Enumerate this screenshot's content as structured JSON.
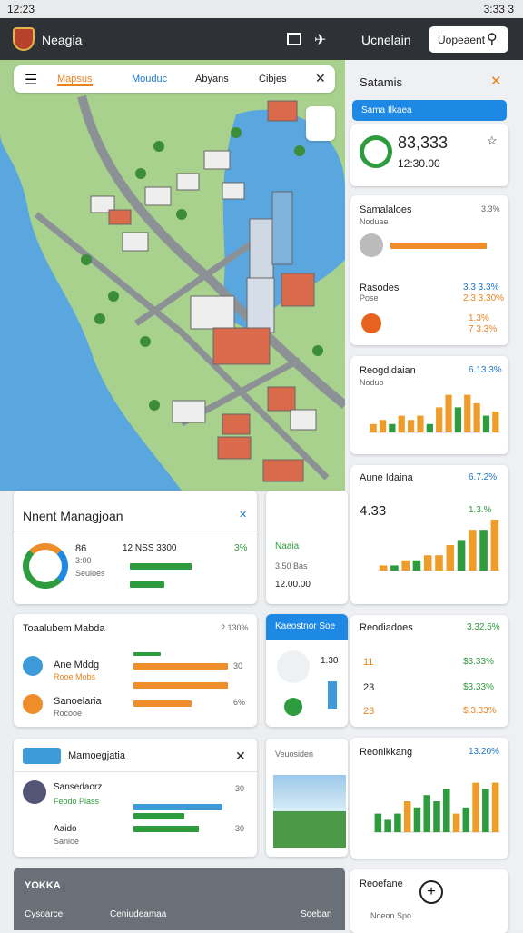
{
  "status_bar": {
    "time": "12:23",
    "right": "3:33 3"
  },
  "app_bar": {
    "title": "Neagia",
    "tabs": [
      "Mapsus",
      "Mouduc",
      "Abyans",
      "Cibjes"
    ]
  },
  "panel": {
    "header": "Ucnelain",
    "button": "Uopeaent",
    "title": "Satamis",
    "banner": "Sama Ilkaea",
    "summary": {
      "value": "83,333",
      "time": "12:30.00"
    },
    "sales": {
      "title": "Samalaloes",
      "rate": "3.3%",
      "sub": "Noduae",
      "rows": [
        {
          "label": "Rasodes",
          "sub": "Pose",
          "value": "3.3 3.3%",
          "value2": "2.3 3.30%"
        },
        {
          "value": "1.3%",
          "value2": "7 3.3%"
        }
      ]
    },
    "charts": [
      {
        "title": "Reogdidaian",
        "rate": "6.13.3%",
        "sub": "Noduo",
        "ylim": [
          0,
          10
        ],
        "values": [
          2,
          3,
          2,
          4,
          3,
          4,
          2,
          6,
          9,
          6,
          9,
          7,
          4,
          5
        ],
        "colors": [
          "#ef9d2a",
          "#ef9d2a",
          "#2e9b3f",
          "#ef9d2a",
          "#ef9d2a",
          "#ef9d2a",
          "#2e9b3f",
          "#ef9d2a",
          "#ef9d2a",
          "#2e9b3f",
          "#ef9d2a",
          "#ef9d2a",
          "#2e9b3f",
          "#ef9d2a"
        ]
      },
      {
        "title": "Aune Idaina",
        "rate": "6.7.2%",
        "value": "4.33",
        "rate2": "1.3.%",
        "ylim": [
          0,
          10
        ],
        "values": [
          1,
          1,
          2,
          2,
          3,
          3,
          5,
          6,
          8,
          8,
          10
        ],
        "colors": [
          "#ef9d2a",
          "#2e9b3f",
          "#ef9d2a",
          "#2e9b3f",
          "#ef9d2a",
          "#ef9d2a",
          "#ef9d2a",
          "#2e9b3f",
          "#ef9d2a",
          "#2e9b3f",
          "#ef9d2a"
        ]
      },
      {
        "title": "Reonlkkang",
        "rate": "13.20%",
        "ylim": [
          0,
          10
        ],
        "values": [
          3,
          2,
          3,
          5,
          4,
          6,
          5,
          7,
          3,
          4,
          8,
          7,
          8
        ],
        "colors": [
          "#2e9b3f",
          "#2e9b3f",
          "#2e9b3f",
          "#ef9d2a",
          "#2e9b3f",
          "#2e9b3f",
          "#2e9b3f",
          "#2e9b3f",
          "#ef9d2a",
          "#2e9b3f",
          "#ef9d2a",
          "#2e9b3f",
          "#ef9d2a"
        ]
      }
    ],
    "list": {
      "title": "Reodiadoes",
      "rate": "3.32.5%",
      "rows": [
        {
          "label": "11",
          "value": "$3.33%"
        },
        {
          "label": "23",
          "value": "$3.33%"
        },
        {
          "label": "23",
          "value": "$.3.33%"
        }
      ]
    },
    "last": {
      "title": "Reoefane",
      "sub": "Noeon Spo"
    }
  },
  "left": {
    "management": {
      "title": "Nnent Managjoan",
      "donut": [
        "86",
        "3:00",
        "Seuioes"
      ],
      "head": "12 NSS 3300",
      "rate": "3%"
    },
    "side": {
      "title": "Naaia",
      "sub": "3.50 Bas",
      "value": "12.00.00"
    },
    "tasks": {
      "title": "Toaalubem Mabda",
      "rate": "2.130%",
      "rows": [
        {
          "label": "Ane Mddg",
          "sub": "Rooe Mobs",
          "value": "30"
        },
        {
          "label": "Sanoelaria",
          "sub": "Rocooe",
          "value": "6%"
        }
      ]
    },
    "blue": {
      "title": "Kaeostnor Soe",
      "value": "1.30"
    },
    "navigation": {
      "title": "Mamoegjatia",
      "rows": [
        {
          "label": "Sansedaorz",
          "sub": "Feodo Plass",
          "value": "30"
        },
        {
          "label": "Aaido",
          "sub": "Sanioe",
          "value": "30"
        }
      ]
    },
    "photo": {
      "title": "Veuosiden"
    }
  },
  "bottom_nav": {
    "logo": "YOKKA",
    "items": [
      "Cysoarce",
      "Ceniudeamaa",
      "Soeban"
    ]
  }
}
